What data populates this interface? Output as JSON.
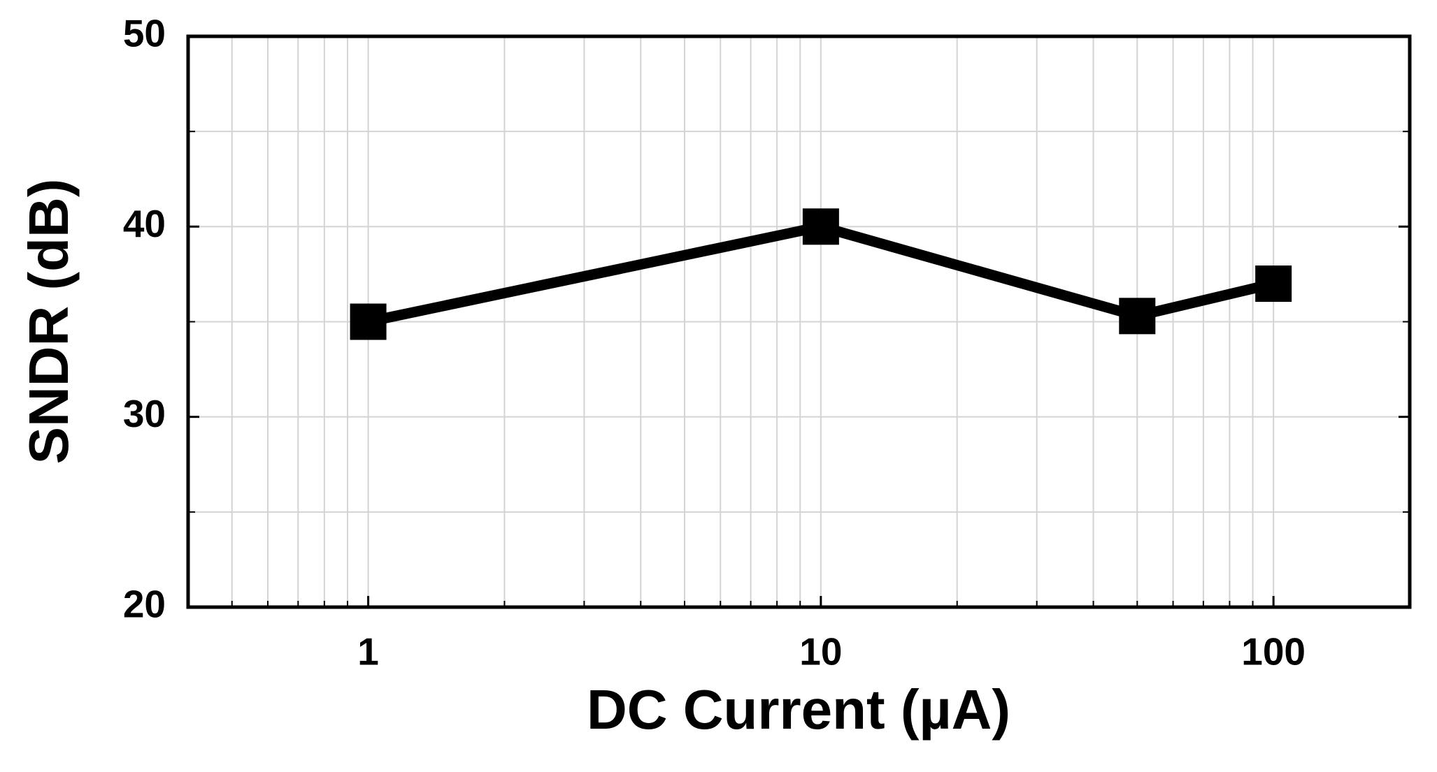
{
  "chart_data": {
    "type": "line",
    "xlabel": "DC Current (µA)",
    "ylabel": "SNDR (dB)",
    "x": [
      1,
      10,
      50,
      100
    ],
    "series": [
      {
        "color": "#000000",
        "values": [
          35,
          40,
          35.3,
          37
        ]
      }
    ],
    "xscale": "log",
    "xlim": [
      0.4,
      200
    ],
    "xticks": [
      1,
      10,
      100
    ],
    "xminorticks": [
      0.5,
      0.6,
      0.7,
      0.8,
      0.9,
      2,
      3,
      4,
      5,
      6,
      7,
      8,
      9,
      20,
      30,
      40,
      50,
      60,
      70,
      80,
      90,
      200
    ],
    "ylim": [
      20,
      50
    ],
    "yticks": [
      20,
      30,
      40,
      50
    ],
    "yminorticks": [
      25,
      35,
      45
    ],
    "grid": true,
    "marker": "square"
  }
}
